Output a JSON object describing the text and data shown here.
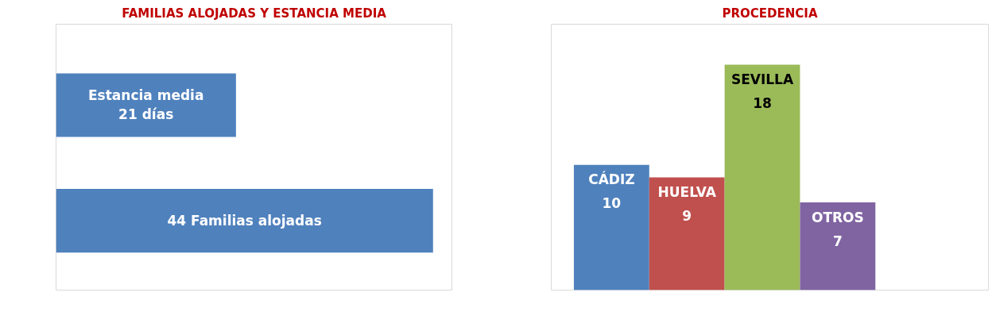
{
  "chart_data": [
    {
      "type": "bar",
      "orientation": "horizontal",
      "title": "FAMILIAS ALOJADAS Y ESTANCIA MEDIA",
      "categories": [
        null,
        null
      ],
      "values": [
        21,
        44
      ],
      "color": "#4f81bd",
      "value_labels": [
        "Estancia media\n21 días",
        "44 Familias alojadas"
      ]
    },
    {
      "type": "bar",
      "title": "PROCEDENCIA",
      "categories": [
        "CÁDIZ",
        "HUELVA",
        "SEVILLA",
        "OTROS"
      ],
      "values": [
        10,
        9,
        18,
        7
      ],
      "colors": [
        "#4f81bd",
        "#c0504d",
        "#9bbb59",
        "#8064a2"
      ],
      "data_labels": true
    }
  ]
}
